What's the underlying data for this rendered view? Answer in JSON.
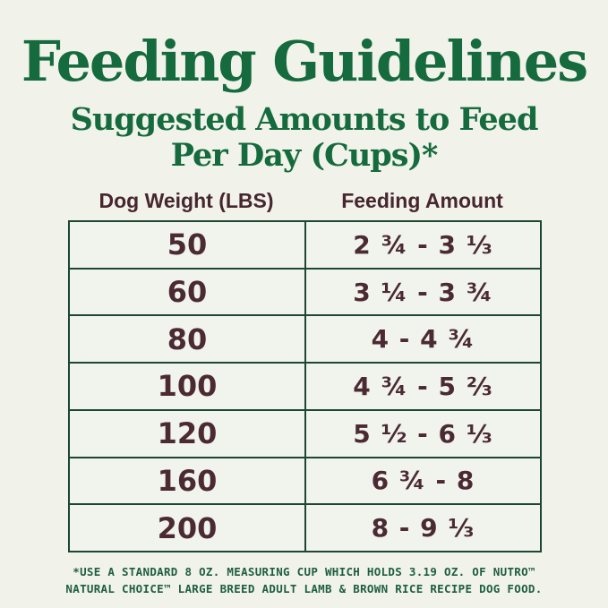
{
  "header": {
    "title": "Feeding Guidelines",
    "subtitle_line1": "Suggested Amounts to Feed",
    "subtitle_line2": "Per Day (Cups)*"
  },
  "table": {
    "columns": [
      "Dog Weight (LBS)",
      "Feeding Amount"
    ],
    "rows": [
      {
        "weight": "50",
        "amount": "2 ¾ - 3 ⅓"
      },
      {
        "weight": "60",
        "amount": "3 ¼ - 3 ¾"
      },
      {
        "weight": "80",
        "amount": "4 - 4 ¾"
      },
      {
        "weight": "100",
        "amount": "4 ¾ - 5 ⅔"
      },
      {
        "weight": "120",
        "amount": "5 ½ - 6 ⅓"
      },
      {
        "weight": "160",
        "amount": "6 ¾ - 8"
      },
      {
        "weight": "200",
        "amount": "8 - 9 ⅓"
      }
    ]
  },
  "footnote": {
    "line1": "*USE A STANDARD 8 OZ. MEASURING CUP WHICH HOLDS 3.19 OZ. OF NUTRO™",
    "line2": "NATURAL CHOICE™ LARGE BREED ADULT LAMB & BROWN RICE RECIPE DOG FOOD."
  },
  "colors": {
    "background": "#f1f2e9",
    "cell_background": "#f0f4ec",
    "heading_green": "#156a3e",
    "footnote_green": "#1d5e41",
    "border_green": "#1d4634",
    "table_text_maroon": "#4b2a34"
  }
}
